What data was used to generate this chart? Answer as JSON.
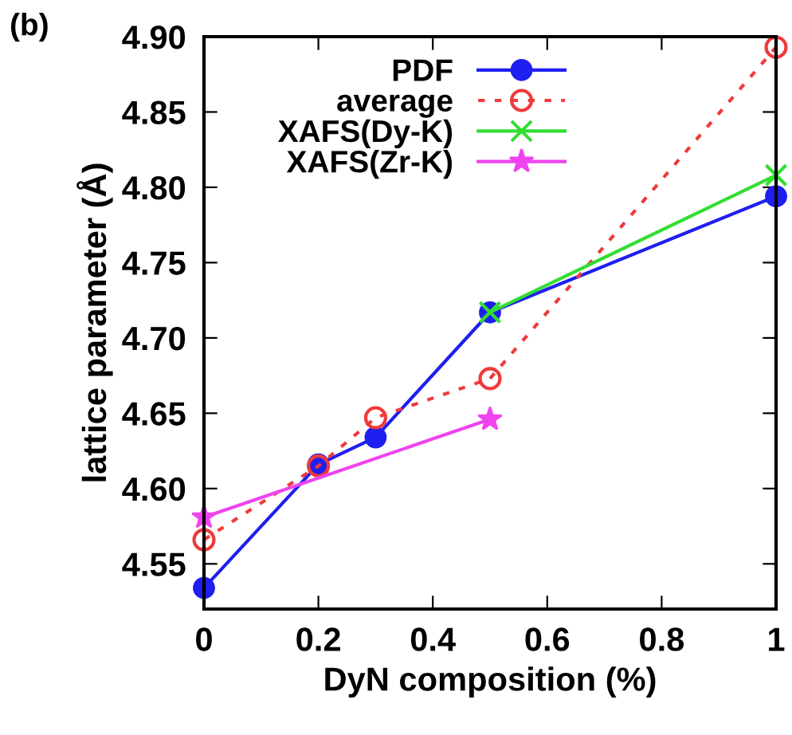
{
  "chart_data": {
    "type": "line",
    "xlabel": "DyN composition (%)",
    "ylabel": "lattice parameter (Å)",
    "annotations": [
      "(b)"
    ],
    "xlim": [
      0,
      1
    ],
    "xticks": [
      0,
      0.2,
      0.4,
      0.6,
      0.8,
      1
    ],
    "ylim": [
      4.52,
      4.9
    ],
    "yticks": [
      {
        "value": 4.55,
        "label": "4.55"
      },
      {
        "value": 4.6,
        "label": "4.60"
      },
      {
        "value": 4.65,
        "label": "4.65"
      },
      {
        "value": 4.7,
        "label": "4.70"
      },
      {
        "value": 4.75,
        "label": "4.75"
      },
      {
        "value": 4.8,
        "label": "4.80"
      },
      {
        "value": 4.85,
        "label": "4.85"
      },
      {
        "value": 4.9,
        "label": "4.90"
      }
    ],
    "grid": false,
    "legend": "top",
    "series": [
      {
        "name": "PDF",
        "color": "#1f1fef",
        "x": [
          0,
          0.2,
          0.3,
          0.5,
          1
        ],
        "values": [
          4.534,
          4.616,
          4.634,
          4.717,
          4.794
        ],
        "marker": "circle",
        "line_style": "solid"
      },
      {
        "name": "average",
        "color": "#f03a3a",
        "x": [
          0,
          0.2,
          0.3,
          0.5,
          1
        ],
        "values": [
          4.566,
          4.615,
          4.647,
          4.673,
          4.893
        ],
        "marker": "circle",
        "line_style": "dotted"
      },
      {
        "name": "XAFS(Dy-K)",
        "color": "#33dd33",
        "x": [
          0.5,
          1
        ],
        "values": [
          4.717,
          4.808
        ],
        "marker": "cross",
        "line_style": "solid"
      },
      {
        "name": "XAFS(Zr-K)",
        "color": "#ee44ee",
        "x": [
          0,
          0.5
        ],
        "values": [
          4.581,
          4.646
        ],
        "marker": "star",
        "line_style": "solid"
      }
    ]
  }
}
